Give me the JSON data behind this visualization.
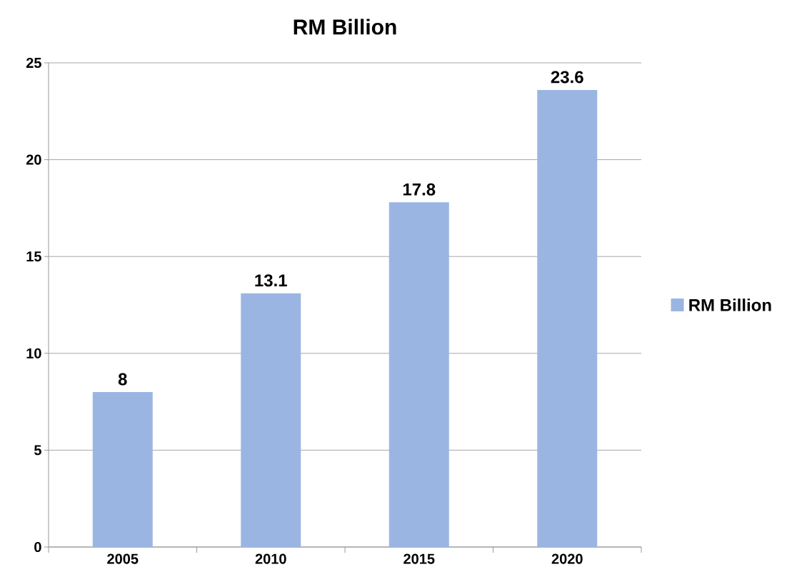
{
  "chart_data": {
    "type": "bar",
    "title": "RM Billion",
    "categories": [
      "2005",
      "2010",
      "2015",
      "2020"
    ],
    "series": [
      {
        "name": "RM Billion",
        "color": "#9bb5e3",
        "values": [
          8,
          13.1,
          17.8,
          23.6
        ]
      }
    ],
    "ylim": [
      0,
      25
    ],
    "yticks": [
      0,
      5,
      10,
      15,
      20,
      25
    ],
    "grid": "y",
    "legend": "right",
    "data_labels": true
  }
}
